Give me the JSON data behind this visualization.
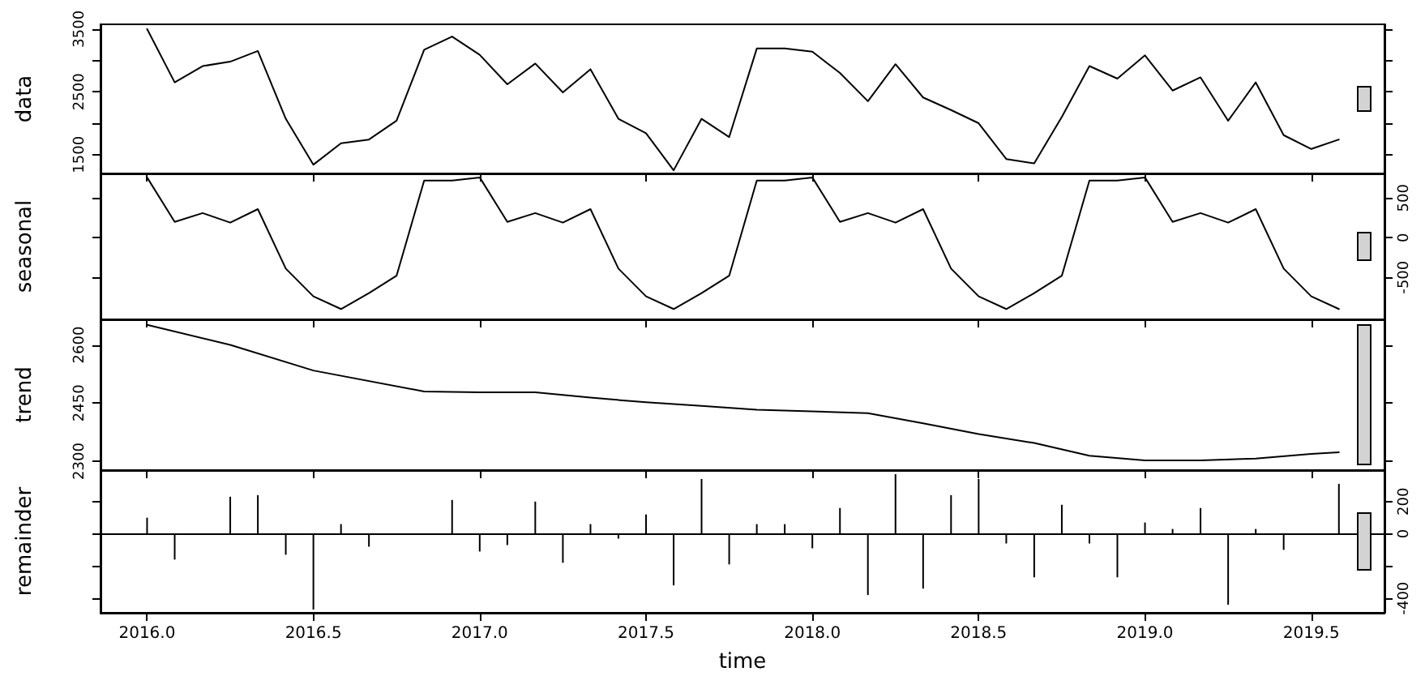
{
  "chart_data": [
    {
      "type": "line",
      "ylabel": "data",
      "marker": "none",
      "grid": false,
      "tick_labels": "y",
      "color": "#000000",
      "xlim": [
        2015.86,
        2019.72
      ],
      "xticks": [
        {
          "value": 2016,
          "label": null
        },
        {
          "value": 2016.5,
          "label": null
        },
        {
          "value": 2017,
          "label": null
        },
        {
          "value": 2017.5,
          "label": null
        },
        {
          "value": 2018,
          "label": null
        },
        {
          "value": 2018.5,
          "label": null
        },
        {
          "value": 2019,
          "label": null
        },
        {
          "value": 2019.5,
          "label": null
        }
      ],
      "x": [
        2016,
        2016.083,
        2016.167,
        2016.25,
        2016.333,
        2016.417,
        2016.5,
        2016.583,
        2016.667,
        2016.75,
        2016.833,
        2016.917,
        2017,
        2017.083,
        2017.167,
        2017.25,
        2017.333,
        2017.417,
        2017.5,
        2017.583,
        2017.667,
        2017.75,
        2017.833,
        2017.917,
        2018,
        2018.083,
        2018.167,
        2018.25,
        2018.333,
        2018.417,
        2018.5,
        2018.583,
        2018.667,
        2018.75,
        2018.833,
        2018.917,
        2019,
        2019.083,
        2019.167,
        2019.25,
        2019.333,
        2019.417,
        2019.5,
        2019.583
      ],
      "values": [
        3500,
        2650,
        2910,
        2980,
        3150,
        2070,
        1340,
        1680,
        1740,
        2040,
        3170,
        3380,
        3090,
        2620,
        2950,
        2490,
        2860,
        2070,
        1840,
        1250,
        2070,
        1780,
        3190,
        3190,
        3140,
        2800,
        2350,
        2940,
        2410,
        2210,
        2000,
        1430,
        1360,
        2100,
        2910,
        2710,
        3080,
        2520,
        2730,
        2040,
        2650,
        1810,
        1590,
        1740
      ],
      "ylim": [
        1200,
        3575
      ],
      "yticks": [
        1500,
        {
          "value": 2000,
          "label": null
        },
        2500,
        {
          "value": 3000,
          "label": null
        },
        3500
      ]
    },
    {
      "type": "line",
      "ylabel": "seasonal",
      "marker": "none",
      "grid": false,
      "tick_labels": "y",
      "color": "#000000",
      "xlim": [
        2015.86,
        2019.72
      ],
      "xticks": [
        {
          "value": 2016,
          "label": null
        },
        {
          "value": 2016.5,
          "label": null
        },
        {
          "value": 2017,
          "label": null
        },
        {
          "value": 2017.5,
          "label": null
        },
        {
          "value": 2018,
          "label": null
        },
        {
          "value": 2018.5,
          "label": null
        },
        {
          "value": 2019,
          "label": null
        },
        {
          "value": 2019.5,
          "label": null
        }
      ],
      "x": [
        2016,
        2016.083,
        2016.167,
        2016.25,
        2016.333,
        2016.417,
        2016.5,
        2016.583,
        2016.667,
        2016.75,
        2016.833,
        2016.917,
        2017,
        2017.083,
        2017.167,
        2017.25,
        2017.333,
        2017.417,
        2017.5,
        2017.583,
        2017.667,
        2017.75,
        2017.833,
        2017.917,
        2018,
        2018.083,
        2018.167,
        2018.25,
        2018.333,
        2018.417,
        2018.5,
        2018.583,
        2018.667,
        2018.75,
        2018.833,
        2018.917,
        2019,
        2019.083,
        2019.167,
        2019.25,
        2019.333,
        2019.417,
        2019.5,
        2019.583
      ],
      "values": [
        760,
        200,
        310,
        190,
        360,
        -390,
        -740,
        -900,
        -700,
        -480,
        720,
        720,
        760,
        200,
        310,
        190,
        360,
        -390,
        -740,
        -900,
        -700,
        -480,
        720,
        720,
        760,
        200,
        310,
        190,
        360,
        -390,
        -740,
        -900,
        -700,
        -480,
        720,
        720,
        760,
        200,
        310,
        190,
        360,
        -390,
        -740,
        -900
      ],
      "ylim": [
        -1030,
        810
      ],
      "yticks": [
        -500,
        0,
        500
      ]
    },
    {
      "type": "line",
      "ylabel": "trend",
      "marker": "none",
      "grid": false,
      "tick_labels": "y",
      "color": "#000000",
      "xlim": [
        2015.86,
        2019.72
      ],
      "xticks": [
        {
          "value": 2016,
          "label": null
        },
        {
          "value": 2016.5,
          "label": null
        },
        {
          "value": 2017,
          "label": null
        },
        {
          "value": 2017.5,
          "label": null
        },
        {
          "value": 2018,
          "label": null
        },
        {
          "value": 2018.5,
          "label": null
        },
        {
          "value": 2019,
          "label": null
        },
        {
          "value": 2019.5,
          "label": null
        }
      ],
      "x": [
        2016,
        2016.25,
        2016.5,
        2016.833,
        2017,
        2017.167,
        2017.333,
        2017.5,
        2017.667,
        2017.833,
        2018.167,
        2018.333,
        2018.5,
        2018.667,
        2018.833,
        2019,
        2019.167,
        2019.333,
        2019.5,
        2019.583
      ],
      "values": [
        2652,
        2600,
        2534,
        2480,
        2478,
        2478,
        2464,
        2452,
        2443,
        2433,
        2424,
        2398,
        2370,
        2347,
        2314,
        2302,
        2302,
        2307,
        2319,
        2323
      ],
      "ylim": [
        2277,
        2666
      ],
      "yticks": [
        2300,
        2450,
        2600
      ]
    },
    {
      "type": "bar",
      "ylabel": "remainder",
      "xlabel": "time",
      "grid": false,
      "color": "#000000",
      "xlim": [
        2015.86,
        2019.72
      ],
      "xticks": [
        {
          "value": 2016,
          "label": "2016.0"
        },
        {
          "value": 2016.5,
          "label": "2016.5"
        },
        {
          "value": 2017,
          "label": "2017.0"
        },
        {
          "value": 2017.5,
          "label": "2017.5"
        },
        {
          "value": 2018,
          "label": "2018.0"
        },
        {
          "value": 2018.5,
          "label": "2018.5"
        },
        {
          "value": 2019,
          "label": "2019.0"
        },
        {
          "value": 2019.5,
          "label": "2019.5"
        }
      ],
      "x": [
        2016,
        2016.083,
        2016.167,
        2016.25,
        2016.333,
        2016.417,
        2016.5,
        2016.583,
        2016.667,
        2016.75,
        2016.833,
        2016.917,
        2017,
        2017.083,
        2017.167,
        2017.25,
        2017.333,
        2017.417,
        2017.5,
        2017.583,
        2017.667,
        2017.75,
        2017.833,
        2017.917,
        2018,
        2018.083,
        2018.167,
        2018.25,
        2018.333,
        2018.417,
        2018.5,
        2018.583,
        2018.667,
        2018.75,
        2018.833,
        2018.917,
        2019,
        2019.083,
        2019.167,
        2019.25,
        2019.333,
        2019.417,
        2019.5,
        2019.583
      ],
      "values": [
        100,
        -160,
        0,
        230,
        240,
        -130,
        -470,
        60,
        -80,
        0,
        0,
        210,
        -110,
        -70,
        200,
        -180,
        60,
        -30,
        120,
        -320,
        340,
        -190,
        60,
        60,
        -90,
        160,
        -380,
        370,
        -340,
        240,
        340,
        -60,
        -270,
        180,
        -60,
        -270,
        70,
        30,
        160,
        -440,
        30,
        -100,
        0,
        310
      ],
      "ylim": [
        -490,
        395
      ],
      "yticks": [
        -400,
        {
          "value": -200,
          "label": null
        },
        0,
        200
      ],
      "ref_lines": [
        {
          "axis": "y",
          "value": 0,
          "color": "#000000"
        }
      ]
    }
  ]
}
